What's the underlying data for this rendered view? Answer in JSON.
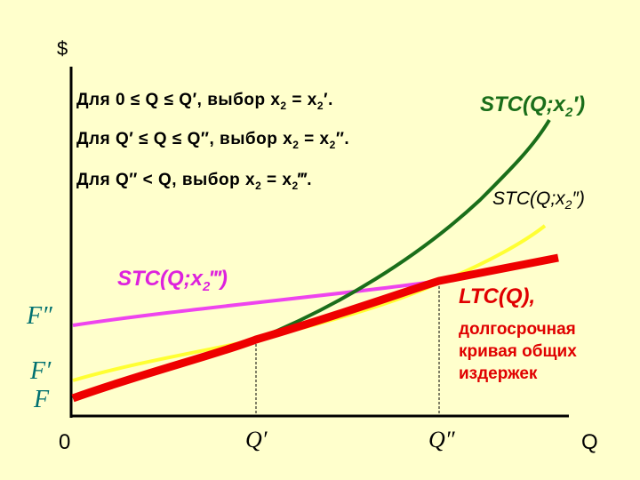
{
  "axes": {
    "y_label": "$",
    "origin_label": "0",
    "x_label": "Q",
    "x_ticks": [
      "Q′",
      "Q″"
    ]
  },
  "fixed_cost_labels": [
    "F″",
    "F′",
    "F"
  ],
  "conditions": [
    {
      "prefix": "Для",
      "range": "0 ≤ Q ≤ Q′,",
      "choice": "выбор x",
      "sub": "2",
      "eq": " = x",
      "sub2": "2",
      "sup": "′."
    },
    {
      "prefix": "Для",
      "range": "Q′ ≤ Q ≤ Q″,",
      "choice": "выбор x",
      "sub": "2",
      "eq": " = x",
      "sub2": "2",
      "sup": "″."
    },
    {
      "prefix": "Для",
      "range": "Q″ < Q,",
      "choice": "выбор x",
      "sub": "2",
      "eq": " = x",
      "sub2": "2",
      "sup": "‴."
    }
  ],
  "curve_labels": {
    "stc1": {
      "main": "STC(Q;x",
      "sub": "2",
      "end": "′)"
    },
    "stc2": {
      "main": "STC(Q;x",
      "sub": "2",
      "end": "″)"
    },
    "stc3": {
      "main": "STC(Q;x",
      "sub": "2",
      "end": "‴)"
    },
    "ltc": "LTC(Q),"
  },
  "ltc_description": [
    "долгосрочная",
    "кривая общих",
    "издержек"
  ],
  "colors": {
    "background": "#ffffcc",
    "stc1": "#1a6e1a",
    "stc2": "#ffff33",
    "stc3": "#ee44ee",
    "ltc": "#ee0000",
    "axis": "#000000"
  }
}
